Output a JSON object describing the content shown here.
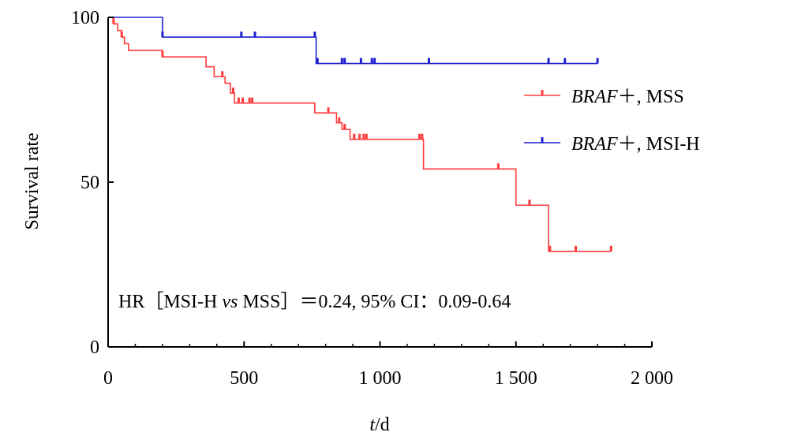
{
  "chart_data": {
    "type": "line",
    "title": "",
    "xlabel_italic": "t",
    "xlabel_rest": "/d",
    "ylabel": "Survival rate",
    "xlim": [
      0,
      2000
    ],
    "ylim": [
      0,
      100
    ],
    "x_ticks": [
      {
        "value": 0,
        "label": "0"
      },
      {
        "value": 500,
        "label": "500"
      },
      {
        "value": 1000,
        "label": "1 000"
      },
      {
        "value": 1500,
        "label": "1 500"
      },
      {
        "value": 2000,
        "label": "2 000"
      }
    ],
    "y_ticks": [
      {
        "value": 0,
        "label": "0"
      },
      {
        "value": 50,
        "label": "50"
      },
      {
        "value": 100,
        "label": "100"
      }
    ],
    "grid": false,
    "legend_position": "right",
    "series": [
      {
        "name": "BRAF+, MSS",
        "legend_italic": "BRAF",
        "legend_rest": "＋, MSS",
        "color": "#ff3b3b",
        "steps": [
          [
            0,
            100
          ],
          [
            20,
            98
          ],
          [
            35,
            96
          ],
          [
            50,
            94
          ],
          [
            60,
            92
          ],
          [
            75,
            90
          ],
          [
            200,
            88
          ],
          [
            360,
            85
          ],
          [
            390,
            82
          ],
          [
            430,
            80
          ],
          [
            450,
            77
          ],
          [
            465,
            74
          ],
          [
            760,
            71
          ],
          [
            840,
            68
          ],
          [
            860,
            66
          ],
          [
            890,
            63
          ],
          [
            1160,
            54
          ],
          [
            1500,
            43
          ],
          [
            1620,
            29
          ],
          [
            1850,
            29
          ]
        ],
        "censors": [
          [
            20,
            98
          ],
          [
            50,
            94
          ],
          [
            200,
            88
          ],
          [
            420,
            82
          ],
          [
            460,
            77
          ],
          [
            480,
            74
          ],
          [
            495,
            74
          ],
          [
            520,
            74
          ],
          [
            530,
            74
          ],
          [
            810,
            71
          ],
          [
            850,
            68
          ],
          [
            870,
            66
          ],
          [
            905,
            63
          ],
          [
            925,
            63
          ],
          [
            940,
            63
          ],
          [
            950,
            63
          ],
          [
            1145,
            63
          ],
          [
            1155,
            63
          ],
          [
            1435,
            54
          ],
          [
            1550,
            43
          ],
          [
            1625,
            29
          ],
          [
            1720,
            29
          ],
          [
            1850,
            29
          ]
        ]
      },
      {
        "name": "BRAF+, MSI-H",
        "legend_italic": "BRAF",
        "legend_rest": "＋, MSI-H",
        "color": "#1f1fcf",
        "steps": [
          [
            0,
            100
          ],
          [
            200,
            94
          ],
          [
            765,
            86
          ],
          [
            1800,
            86
          ]
        ],
        "censors": [
          [
            200,
            94
          ],
          [
            490,
            94
          ],
          [
            540,
            94
          ],
          [
            760,
            94
          ],
          [
            770,
            86
          ],
          [
            860,
            86
          ],
          [
            870,
            86
          ],
          [
            930,
            86
          ],
          [
            970,
            86
          ],
          [
            980,
            86
          ],
          [
            1180,
            86
          ],
          [
            1620,
            86
          ],
          [
            1680,
            86
          ],
          [
            1800,
            86
          ]
        ]
      }
    ],
    "annotation": {
      "pre": "HR［MSI-H ",
      "italic": "vs",
      "post": " MSS］＝0.24, 95% CI：0.09-0.64"
    }
  }
}
